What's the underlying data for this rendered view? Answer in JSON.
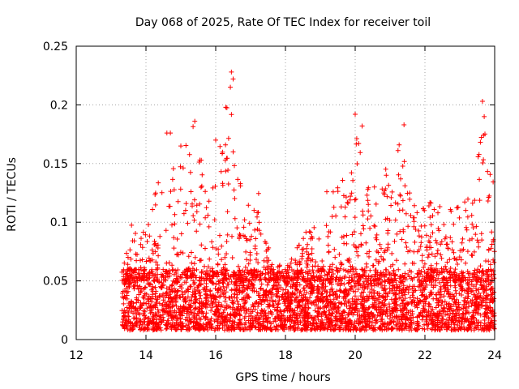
{
  "chart_data": {
    "type": "scatter",
    "title": "Day 068 of 2025, Rate Of TEC Index for receiver toil",
    "xlabel": "GPS time / hours",
    "ylabel": "ROTI / TECUs",
    "xlim": [
      12,
      24
    ],
    "ylim": [
      0,
      0.25
    ],
    "x_ticks": [
      12,
      14,
      16,
      18,
      20,
      22,
      24
    ],
    "x_tick_labels": [
      "12",
      "14",
      "16",
      "18",
      "20",
      "22",
      "24"
    ],
    "y_ticks": [
      0,
      0.05,
      0.1,
      0.15,
      0.2,
      0.25
    ],
    "y_tick_labels": [
      "0",
      "0.05",
      "0.1",
      "0.15",
      "0.2",
      "0.25"
    ],
    "grid": true,
    "marker": "+",
    "series_color": "#ff0000",
    "series": [
      {
        "name": "ROTI",
        "description": "Dense scatter of ROTI values from ~13.3 to 24 h; baseline 0.01-0.06, envelope as listed",
        "envelope": [
          {
            "x": 13.3,
            "y": 0.06
          },
          {
            "x": 13.6,
            "y": 0.1
          },
          {
            "x": 14.0,
            "y": 0.09
          },
          {
            "x": 14.3,
            "y": 0.13
          },
          {
            "x": 14.6,
            "y": 0.175
          },
          {
            "x": 15.0,
            "y": 0.16
          },
          {
            "x": 15.4,
            "y": 0.185
          },
          {
            "x": 15.8,
            "y": 0.12
          },
          {
            "x": 16.0,
            "y": 0.17
          },
          {
            "x": 16.4,
            "y": 0.228
          },
          {
            "x": 16.8,
            "y": 0.11
          },
          {
            "x": 17.2,
            "y": 0.13
          },
          {
            "x": 17.6,
            "y": 0.07
          },
          {
            "x": 18.0,
            "y": 0.06
          },
          {
            "x": 18.5,
            "y": 0.09
          },
          {
            "x": 19.0,
            "y": 0.1
          },
          {
            "x": 19.3,
            "y": 0.15
          },
          {
            "x": 19.8,
            "y": 0.13
          },
          {
            "x": 20.0,
            "y": 0.192
          },
          {
            "x": 20.5,
            "y": 0.14
          },
          {
            "x": 20.9,
            "y": 0.155
          },
          {
            "x": 21.4,
            "y": 0.183
          },
          {
            "x": 21.8,
            "y": 0.11
          },
          {
            "x": 22.1,
            "y": 0.12
          },
          {
            "x": 22.6,
            "y": 0.11
          },
          {
            "x": 23.0,
            "y": 0.12
          },
          {
            "x": 23.4,
            "y": 0.13
          },
          {
            "x": 23.7,
            "y": 0.203
          },
          {
            "x": 24.0,
            "y": 0.125
          }
        ],
        "highlighted_points": [
          {
            "x": 16.45,
            "y": 0.228
          },
          {
            "x": 16.5,
            "y": 0.222
          },
          {
            "x": 16.42,
            "y": 0.215
          },
          {
            "x": 23.65,
            "y": 0.203
          },
          {
            "x": 23.7,
            "y": 0.19
          },
          {
            "x": 20.0,
            "y": 0.192
          },
          {
            "x": 15.4,
            "y": 0.186
          },
          {
            "x": 21.4,
            "y": 0.183
          },
          {
            "x": 20.2,
            "y": 0.182
          },
          {
            "x": 14.6,
            "y": 0.176
          },
          {
            "x": 14.7,
            "y": 0.176
          },
          {
            "x": 16.0,
            "y": 0.17
          },
          {
            "x": 23.68,
            "y": 0.174
          },
          {
            "x": 15.0,
            "y": 0.165
          },
          {
            "x": 16.5,
            "y": 0.16
          }
        ]
      }
    ]
  }
}
